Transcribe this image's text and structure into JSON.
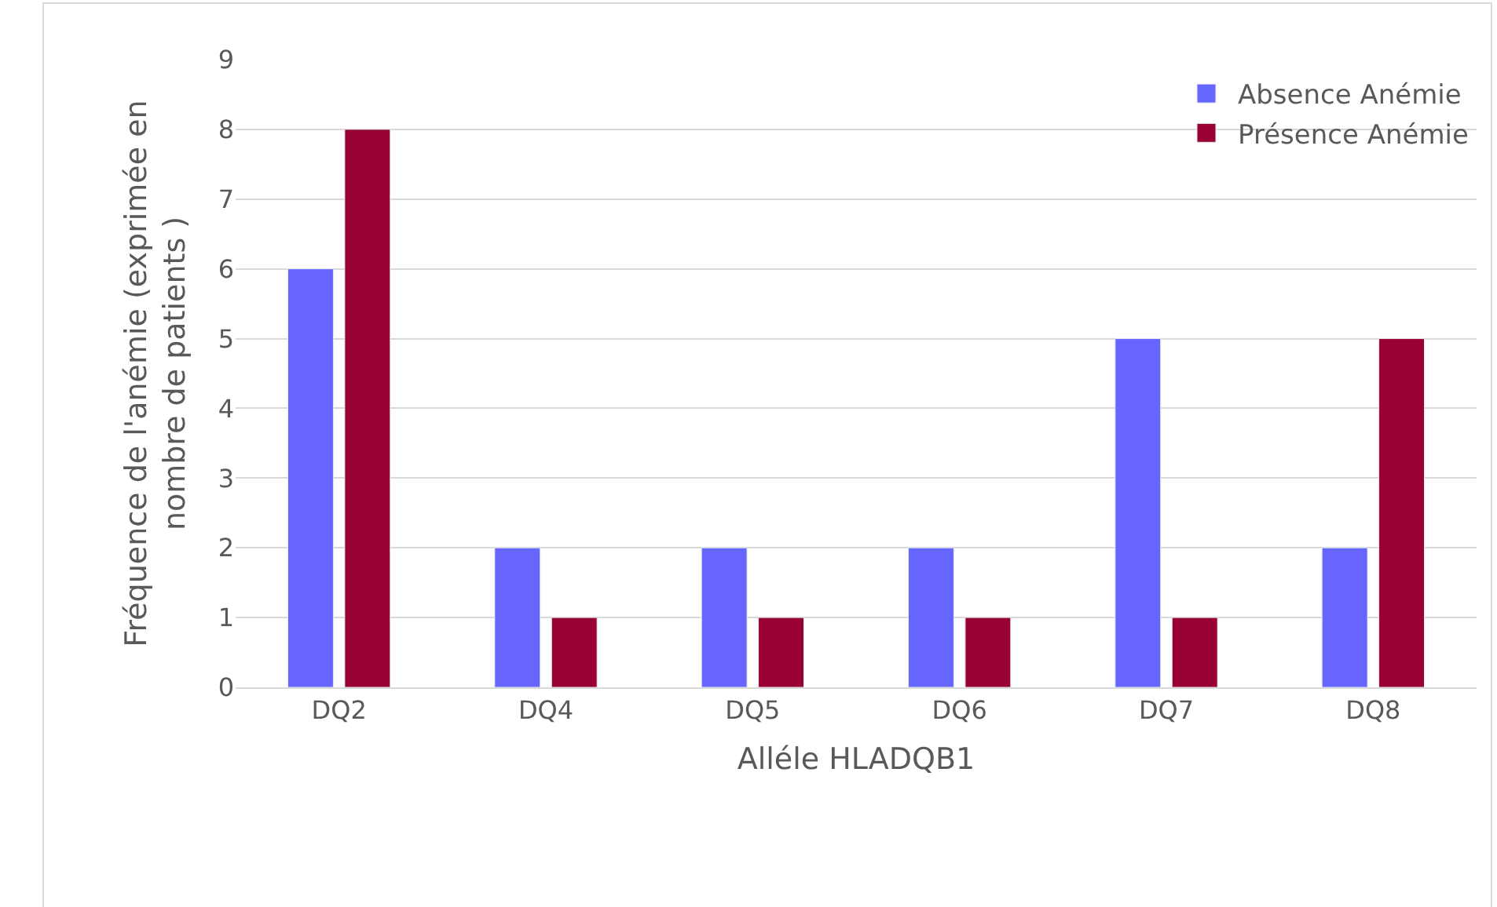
{
  "chart_data": {
    "type": "bar",
    "xlabel": "Alléle HLADQB1",
    "ylabel": "Fréquence de l'anémie (exprimée en nombre de patients )",
    "categories": [
      "DQ2",
      "DQ4",
      "DQ5",
      "DQ6",
      "DQ7",
      "DQ8"
    ],
    "series": [
      {
        "name": "Absence Anémie",
        "color": "#6666ff",
        "values": [
          6,
          2,
          2,
          2,
          5,
          2
        ]
      },
      {
        "name": "Présence Anémie",
        "color": "#990033",
        "values": [
          8,
          1,
          1,
          1,
          1,
          5
        ]
      }
    ],
    "ylim": [
      0,
      9
    ],
    "yticks": [
      0,
      1,
      2,
      3,
      4,
      5,
      6,
      7,
      8,
      9
    ],
    "grid": "y",
    "legend": "top right"
  }
}
